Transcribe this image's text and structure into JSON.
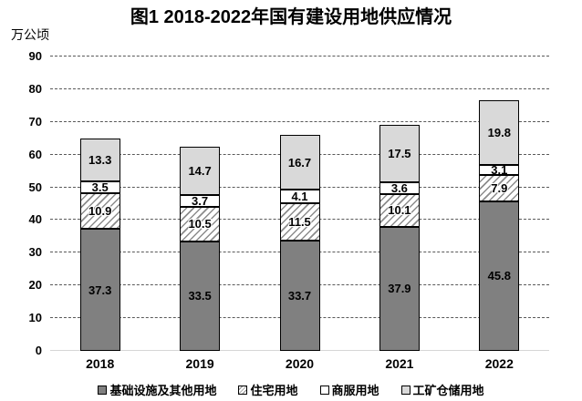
{
  "title": "图1 2018-2022年国有建设用地供应情况",
  "unit_label": "万公顷",
  "colors": {
    "infrastructure_fill": "#808080",
    "residential_fill": "#ffffff",
    "residential_hatch_line": "#8c8c8c",
    "commercial_fill": "#ffffff",
    "industrial_fill": "#d9d9d9",
    "bar_border": "#000000",
    "gridline": "#595959",
    "axis_line": "#d6d6d6"
  },
  "chart_data": {
    "type": "bar",
    "stacked": true,
    "title": "图1 2018-2022年国有建设用地供应情况",
    "ylabel": "万公顷",
    "xlabel": "",
    "ylim": [
      0,
      90
    ],
    "yticks": [
      0,
      10,
      20,
      30,
      40,
      50,
      60,
      70,
      80,
      90
    ],
    "grid": "horizontal-dashed",
    "legend_position": "bottom",
    "categories": [
      "2018",
      "2019",
      "2020",
      "2021",
      "2022"
    ],
    "series": [
      {
        "name": "基础设施及其他用地",
        "pattern": "solid",
        "fill": "#808080",
        "values": [
          37.3,
          33.5,
          33.7,
          37.9,
          45.8
        ]
      },
      {
        "name": "住宅用地",
        "pattern": "hatch",
        "fill": "#ffffff",
        "values": [
          10.9,
          10.5,
          11.5,
          10.1,
          7.9
        ]
      },
      {
        "name": "商服用地",
        "pattern": "solid",
        "fill": "#ffffff",
        "values": [
          3.5,
          3.7,
          4.1,
          3.6,
          3.1
        ]
      },
      {
        "name": "工矿仓储用地",
        "pattern": "solid",
        "fill": "#d9d9d9",
        "values": [
          13.3,
          14.7,
          16.7,
          17.5,
          19.8
        ]
      }
    ]
  }
}
